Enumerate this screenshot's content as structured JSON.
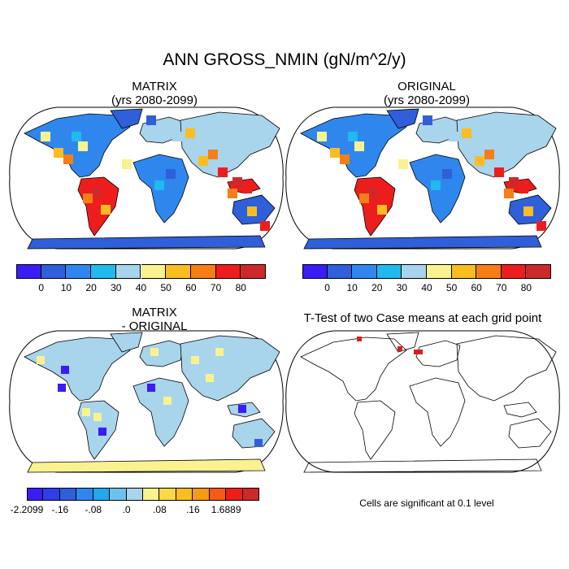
{
  "title": "ANN GROSS_NMIN (gN/m^2/y)",
  "panels": [
    {
      "id": "matrix",
      "title_line1": "MATRIX",
      "title_line2": "(yrs 2080-2099)"
    },
    {
      "id": "original",
      "title_line1": "ORIGINAL",
      "title_line2": "(yrs 2080-2099)"
    },
    {
      "id": "difference",
      "title_line1": "MATRIX",
      "title_line2": "- ORIGINAL"
    },
    {
      "id": "ttest",
      "title_line1": "T-Test of two Case means at each grid point",
      "title_line2": ""
    }
  ],
  "colorbar_main": {
    "colors": [
      "#3a1df5",
      "#2f5fd9",
      "#2f87ee",
      "#21b9ee",
      "#a8d4ec",
      "#f9f28f",
      "#f9bd22",
      "#f57f16",
      "#ee1d1d",
      "#cc2a2a"
    ],
    "labels": [
      "0",
      "10",
      "20",
      "30",
      "40",
      "50",
      "60",
      "70",
      "80"
    ]
  },
  "colorbar_diff": {
    "colors": [
      "#3a1df5",
      "#2f3ee8",
      "#2f5fd9",
      "#2f87ee",
      "#21a8ee",
      "#6cc2ec",
      "#a8d4ec",
      "#f9f28f",
      "#f9d84a",
      "#f9bd22",
      "#f59a16",
      "#f55a16",
      "#ee1d1d",
      "#cc2a2a"
    ],
    "labels": [
      "-2.2099",
      "-.16",
      "-.08",
      ".0",
      ".08",
      ".16",
      "1.6889"
    ]
  },
  "significance_note": "Cells are significant at 0.1 level",
  "palette": {
    "ocean": "#ffffff",
    "low": "#2f5fd9",
    "mid": "#a8d4ec",
    "high": "#ee1d1d",
    "diff_land": "#a8d4ec",
    "diff_pos": "#f9f28f",
    "diff_neg": "#3a1df5",
    "sig_cell": "#d52020"
  }
}
